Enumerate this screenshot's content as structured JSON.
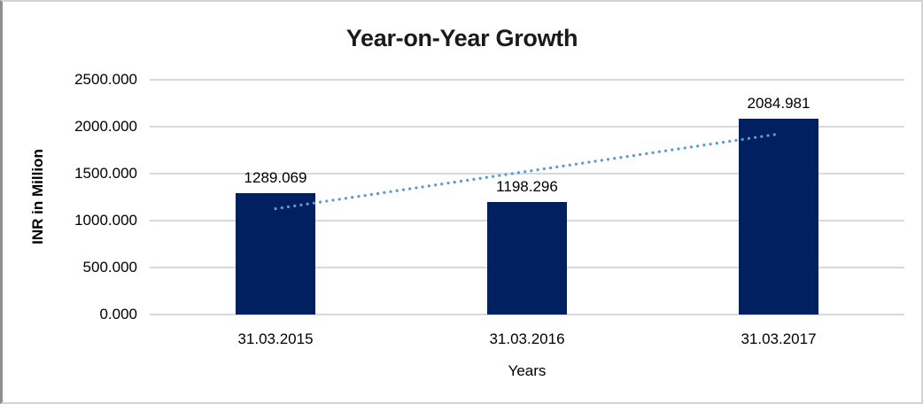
{
  "chart_data": {
    "type": "bar",
    "title": "Year-on-Year Growth",
    "xlabel": "Years",
    "ylabel": "INR in Million",
    "categories": [
      "31.03.2015",
      "31.03.2016",
      "31.03.2017"
    ],
    "values": [
      1289.069,
      1198.296,
      2084.981
    ],
    "value_labels": [
      "1289.069",
      "1198.296",
      "2084.981"
    ],
    "ylim": [
      0,
      2500
    ],
    "ytick_step": 500,
    "ytick_labels": [
      "0.000",
      "500.000",
      "1000.000",
      "1500.000",
      "2000.000",
      "2500.000"
    ],
    "grid": true,
    "legend": "none",
    "trendline": {
      "kind": "linear",
      "style": "dotted"
    },
    "colors": {
      "bar": "#002060",
      "trendline": "#5b9bd5",
      "gridline": "#d9d9d9",
      "title_text": "#1a1a1a",
      "axis_text": "#000000",
      "background": "#ffffff"
    }
  }
}
